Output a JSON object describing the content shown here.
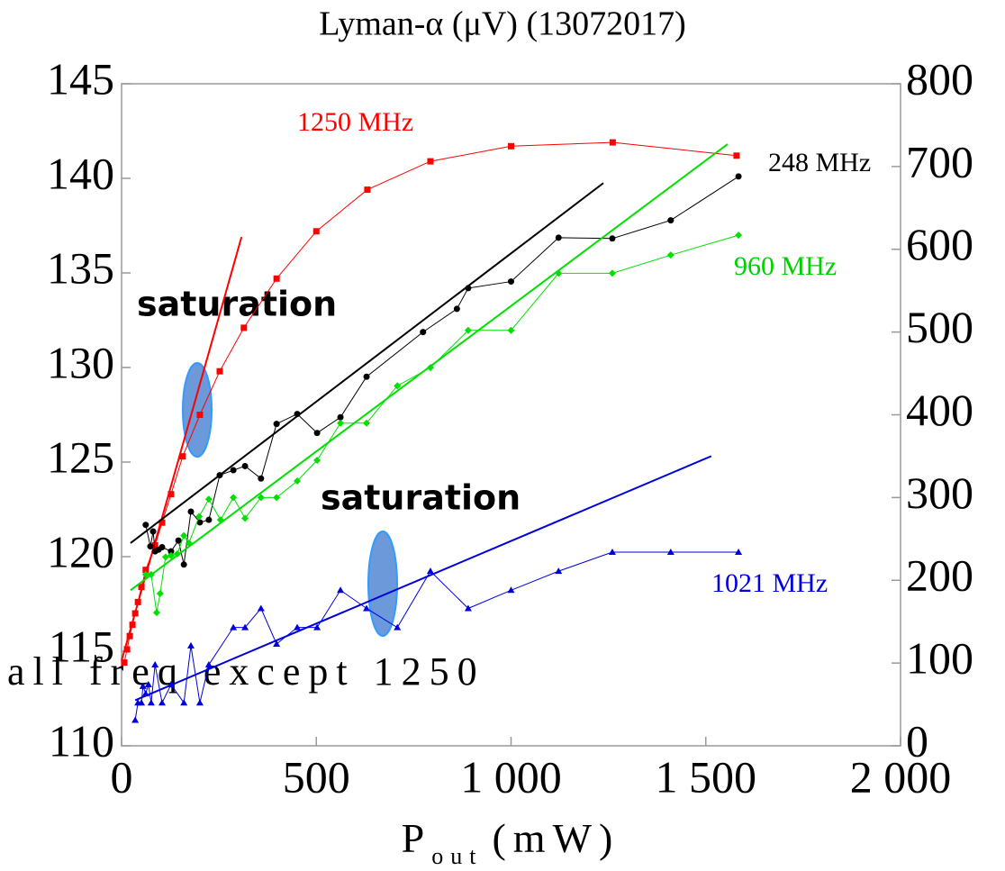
{
  "chart_data": {
    "type": "line",
    "title": "Lyman-α (μV) (13072017)",
    "xlabel": {
      "main": "P",
      "sub": "out",
      "unit": "(mW)"
    },
    "annotations": [
      "saturation",
      "saturation",
      "all freq except 1250"
    ],
    "xlim": [
      0,
      2000
    ],
    "xticks": [
      0,
      500,
      {
        "value": 1000,
        "label": "1 000"
      },
      {
        "value": 1500,
        "label": "1 500"
      },
      {
        "value": 2000,
        "label": "2 000"
      }
    ],
    "ylim": [
      110,
      145
    ],
    "yticks": [
      110,
      115,
      120,
      125,
      130,
      135,
      140,
      145
    ],
    "y2lim": [
      0,
      800
    ],
    "y2ticks": [
      0,
      100,
      200,
      300,
      400,
      500,
      600,
      700,
      800
    ],
    "series": [
      {
        "name": "1250 MHz",
        "color": "#ff0000",
        "marker": "square",
        "x": [
          7,
          14,
          21,
          28,
          35,
          42,
          51,
          62,
          86,
          104,
          127,
          157,
          201,
          252,
          314,
          398,
          500,
          631,
          793,
          1000,
          1261,
          1579
        ],
        "values": [
          114.4,
          115.1,
          115.8,
          116.4,
          117.0,
          117.6,
          118.4,
          119.3,
          120.6,
          121.8,
          123.3,
          125.3,
          127.5,
          129.8,
          132.1,
          134.7,
          137.2,
          139.4,
          140.9,
          141.7,
          141.9,
          141.2
        ],
        "fit": {
          "x": [
            0,
            308
          ],
          "values": [
            114.5,
            136.9
          ]
        }
      },
      {
        "name": "248 MHz",
        "color": "#000000",
        "marker": "circle",
        "axis": "y2",
        "x": [
          62,
          74,
          81,
          86,
          95,
          104,
          127,
          146,
          160,
          178,
          201,
          224,
          252,
          287,
          317,
          358,
          398,
          451,
          502,
          562,
          629,
          774,
          861,
          890,
          1000,
          1122,
          1260,
          1410,
          1584
        ],
        "values": [
          267,
          241,
          259,
          235,
          237,
          240,
          235,
          248,
          219,
          283,
          270,
          273,
          327,
          333,
          338,
          323,
          389,
          401,
          378,
          397,
          446,
          500,
          528,
          553,
          561,
          614,
          613,
          635,
          688
        ],
        "fit": {
          "x": [
            23,
            1237
          ],
          "values": [
            245,
            680
          ]
        }
      },
      {
        "name": "960 MHz",
        "color": "#00e000",
        "marker": "diamond",
        "axis": "y2",
        "x": [
          62,
          76,
          90,
          99,
          113,
          127,
          143,
          160,
          173,
          199,
          224,
          254,
          287,
          317,
          358,
          398,
          451,
          502,
          562,
          629,
          708,
          793,
          890,
          1000,
          1122,
          1260,
          1410,
          1584
        ],
        "values": [
          207,
          207,
          161,
          184,
          228,
          230,
          232,
          254,
          245,
          277,
          298,
          273,
          300,
          275,
          300,
          300,
          320,
          345,
          390,
          390,
          435,
          457,
          502,
          502,
          571,
          571,
          593,
          617
        ],
        "fit": {
          "x": [
            23,
            1556
          ],
          "values": [
            188,
            727
          ]
        }
      },
      {
        "name": "1021 MHz",
        "color": "#0000dd",
        "marker": "triangle",
        "axis": "y2",
        "x": [
          35,
          42,
          51,
          55,
          62,
          69,
          76,
          86,
          104,
          127,
          160,
          178,
          201,
          224,
          287,
          317,
          358,
          398,
          451,
          502,
          562,
          629,
          708,
          793,
          890,
          1000,
          1122,
          1260,
          1410,
          1584
        ],
        "values": [
          31,
          52,
          52,
          72,
          63,
          74,
          52,
          98,
          52,
          74,
          52,
          121,
          52,
          98,
          143,
          143,
          166,
          123,
          143,
          143,
          188,
          166,
          143,
          211,
          166,
          188,
          211,
          234,
          234,
          234
        ],
        "fit": {
          "x": [
            35,
            1514
          ],
          "values": [
            55,
            350
          ]
        }
      }
    ]
  }
}
